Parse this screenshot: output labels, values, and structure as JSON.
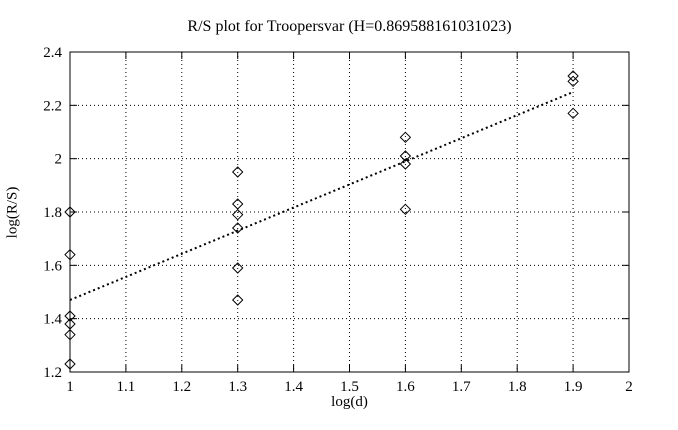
{
  "chart_data": {
    "type": "scatter",
    "title": "R/S plot for Troopersvar (H=0.869588161031023)",
    "xlabel": "log(d)",
    "ylabel": "log(R/S)",
    "H": 0.869588161031023,
    "xlim": [
      1,
      2
    ],
    "ylim": [
      1.2,
      2.4
    ],
    "x_ticks": [
      1,
      1.1,
      1.2,
      1.3,
      1.4,
      1.5,
      1.6,
      1.7,
      1.8,
      1.9,
      2
    ],
    "x_tick_labels": [
      "1",
      "1.1",
      "1.2",
      "1.3",
      "1.4",
      "1.5",
      "1.6",
      "1.7",
      "1.8",
      "1.9",
      "2"
    ],
    "y_ticks": [
      1.2,
      1.4,
      1.6,
      1.8,
      2,
      2.2,
      2.4
    ],
    "y_tick_labels": [
      "1.2",
      "1.4",
      "1.6",
      "1.8",
      "2",
      "2.2",
      "2.4"
    ],
    "grid": true,
    "legend": false,
    "marker": "open-diamond",
    "colors": {
      "foreground": "#000000",
      "background": "#ffffff"
    },
    "series": [
      {
        "name": "rs-data-points",
        "type": "scatter",
        "points": [
          [
            1.0,
            1.8
          ],
          [
            1.0,
            1.64
          ],
          [
            1.0,
            1.41
          ],
          [
            1.0,
            1.38
          ],
          [
            1.0,
            1.34
          ],
          [
            1.0,
            1.23
          ],
          [
            1.3,
            1.95
          ],
          [
            1.3,
            1.83
          ],
          [
            1.3,
            1.79
          ],
          [
            1.3,
            1.74
          ],
          [
            1.3,
            1.59
          ],
          [
            1.3,
            1.47
          ],
          [
            1.6,
            2.08
          ],
          [
            1.6,
            2.01
          ],
          [
            1.6,
            1.98
          ],
          [
            1.6,
            1.81
          ],
          [
            1.9,
            2.31
          ],
          [
            1.9,
            2.29
          ],
          [
            1.9,
            2.17
          ]
        ]
      },
      {
        "name": "fitted-line-slope-H",
        "type": "line",
        "style": "dotted",
        "points": [
          [
            1.0,
            1.47
          ],
          [
            1.9,
            2.25
          ]
        ]
      }
    ]
  }
}
